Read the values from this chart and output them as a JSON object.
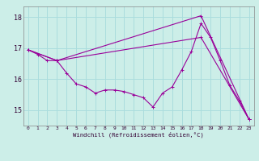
{
  "title": "",
  "xlabel": "Windchill (Refroidissement éolien,°C)",
  "ylabel": "",
  "background_color": "#cceee8",
  "grid_color": "#aadddd",
  "line_color": "#990099",
  "xlim": [
    -0.5,
    23.5
  ],
  "ylim": [
    14.5,
    18.35
  ],
  "yticks": [
    15,
    16,
    17,
    18
  ],
  "xticks": [
    0,
    1,
    2,
    3,
    4,
    5,
    6,
    7,
    8,
    9,
    10,
    11,
    12,
    13,
    14,
    15,
    16,
    17,
    18,
    19,
    20,
    21,
    22,
    23
  ],
  "series": [
    {
      "x": [
        0,
        1,
        2,
        3,
        4,
        5,
        6,
        7,
        8,
        9,
        10,
        11,
        12,
        13,
        14,
        15,
        16,
        17,
        18,
        19,
        20,
        21,
        22,
        23
      ],
      "y": [
        16.95,
        16.8,
        16.6,
        16.6,
        16.2,
        15.85,
        15.75,
        15.55,
        15.65,
        15.65,
        15.6,
        15.5,
        15.4,
        15.1,
        15.55,
        15.75,
        16.3,
        16.9,
        17.8,
        17.35,
        16.6,
        15.8,
        15.3,
        14.7
      ]
    },
    {
      "x": [
        0,
        3,
        18,
        23
      ],
      "y": [
        16.95,
        16.6,
        18.05,
        14.7
      ]
    },
    {
      "x": [
        0,
        3,
        18,
        23
      ],
      "y": [
        16.95,
        16.6,
        17.35,
        14.7
      ]
    }
  ]
}
